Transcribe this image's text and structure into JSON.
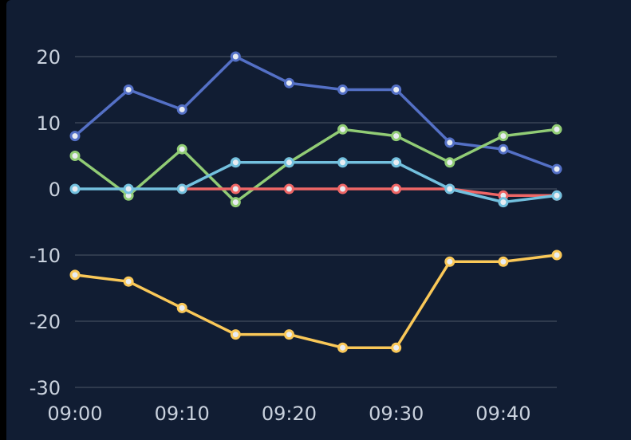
{
  "chart_data": {
    "type": "line",
    "x": [
      "09:00",
      "09:05",
      "09:10",
      "09:15",
      "09:20",
      "09:25",
      "09:30",
      "09:35",
      "09:40",
      "09:45"
    ],
    "x_tick_labels": [
      "09:00",
      "09:10",
      "09:20",
      "09:30",
      "09:40"
    ],
    "y_tick_labels": [
      "20",
      "10",
      "0",
      "-10",
      "-20",
      "-30"
    ],
    "ylim": [
      -30,
      20
    ],
    "grid": "horizontal",
    "series": [
      {
        "color": "#5470c6",
        "values": [
          8,
          15,
          12,
          20,
          16,
          15,
          15,
          7,
          6,
          3
        ]
      },
      {
        "color": "#91cc75",
        "values": [
          5,
          -1,
          6,
          -2,
          4,
          9,
          8,
          4,
          8,
          9
        ]
      },
      {
        "color": "#ee6666",
        "values": [
          null,
          null,
          0,
          0,
          0,
          0,
          0,
          0,
          -1,
          -1
        ]
      },
      {
        "color": "#73c0de",
        "values": [
          0,
          0,
          0,
          4,
          4,
          4,
          4,
          0,
          -2,
          -1
        ]
      },
      {
        "color": "#fac858",
        "values": [
          -13,
          -14,
          -18,
          -22,
          -22,
          -24,
          -24,
          -11,
          -11,
          -10
        ]
      }
    ]
  }
}
